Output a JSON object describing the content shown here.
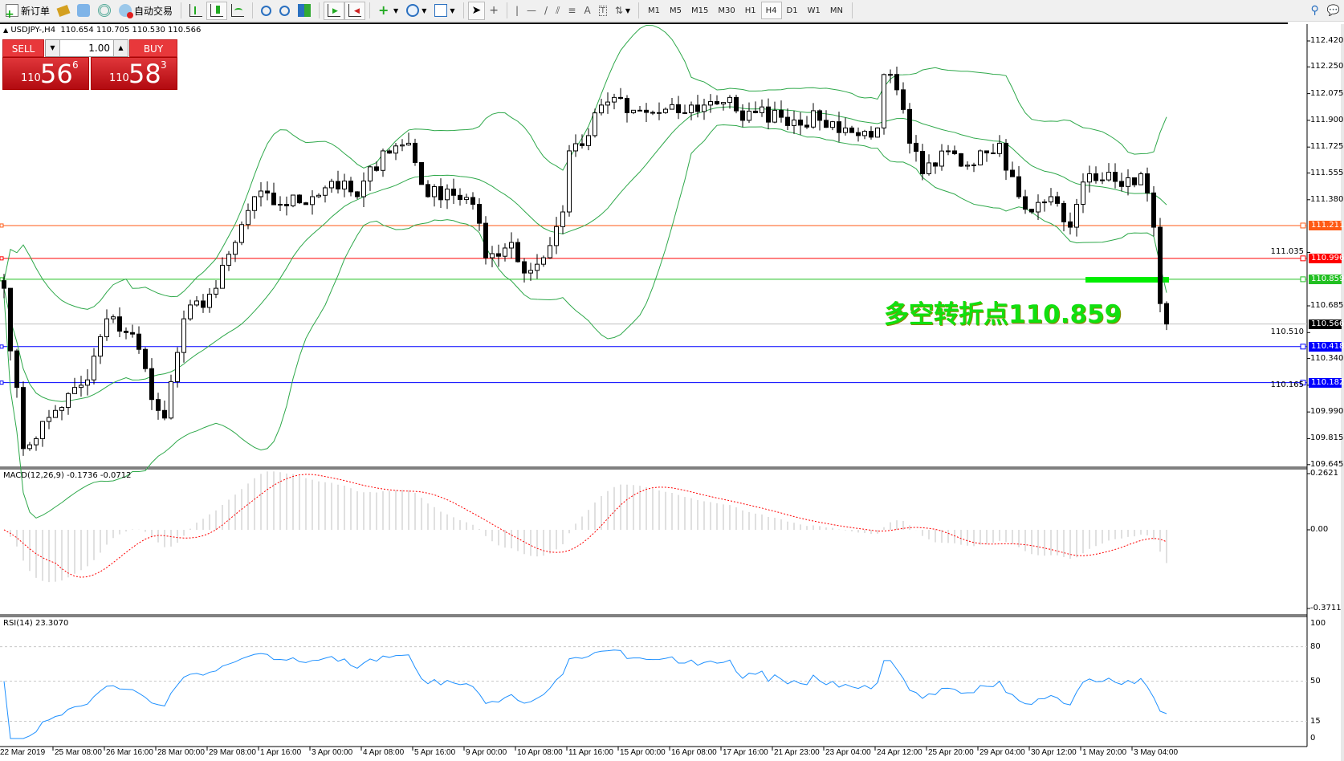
{
  "toolbar": {
    "new_order": "新订单",
    "auto_trading": "自动交易",
    "timeframes": [
      "M1",
      "M5",
      "M15",
      "M30",
      "H1",
      "H4",
      "D1",
      "W1",
      "MN"
    ],
    "active_timeframe": "H4"
  },
  "chart_header": {
    "symbol": "USDJPY-,H4",
    "ohlc": "110.654 110.705 110.530 110.566"
  },
  "trade_panel": {
    "sell": "SELL",
    "buy": "BUY",
    "lot": "1.00",
    "bid": {
      "big": "110",
      "mid": "56",
      "sup": "6"
    },
    "ask": {
      "big": "110",
      "mid": "58",
      "sup": "3"
    }
  },
  "price_axis": [
    "112.420",
    "112.250",
    "112.075",
    "111.900",
    "111.725",
    "111.555",
    "111.380",
    "111.035",
    "110.685",
    "110.510",
    "110.340",
    "110.165",
    "109.990",
    "109.815",
    "109.645"
  ],
  "levels": [
    {
      "price": "111.211",
      "color": "#ff5a14"
    },
    {
      "price": "110.996",
      "color": "#ff0000"
    },
    {
      "price": "110.859",
      "color": "#22c022"
    },
    {
      "price": "110.566",
      "color": "#000000",
      "line": "#c0c0c0"
    },
    {
      "price": "110.418",
      "color": "#0000ff"
    },
    {
      "price": "110.182",
      "color": "#0000ff"
    }
  ],
  "annotation": "多空转折点110.859",
  "macd": {
    "label": "MACD(12,26,9) -0.1736 -0.0712",
    "axis": [
      "0.2621",
      "0.00",
      "-0.3711"
    ]
  },
  "rsi": {
    "label": "RSI(14) 23.3070",
    "axis": [
      "100",
      "80",
      "50",
      "15",
      "0"
    ]
  },
  "time_axis": [
    "22 Mar 2019",
    "25 Mar 08:00",
    "26 Mar 16:00",
    "28 Mar 00:00",
    "29 Mar 08:00",
    "1 Apr 16:00",
    "3 Apr 00:00",
    "4 Apr 08:00",
    "5 Apr 16:00",
    "9 Apr 00:00",
    "10 Apr 08:00",
    "11 Apr 16:00",
    "15 Apr 00:00",
    "16 Apr 08:00",
    "17 Apr 16:00",
    "21 Apr 23:00",
    "23 Apr 04:00",
    "24 Apr 12:00",
    "25 Apr 20:00",
    "29 Apr 04:00",
    "30 Apr 12:00",
    "1 May 20:00",
    "3 May 04:00"
  ],
  "chart_data": {
    "type": "candlestick",
    "symbol": "USDJPY",
    "timeframe": "H4",
    "ylim": [
      109.645,
      112.42
    ],
    "indicators": [
      "Bollinger Bands",
      "MACD(12,26,9)",
      "RSI(14)"
    ],
    "close_waypoints": [
      [
        0,
        110.8
      ],
      [
        3,
        109.75
      ],
      [
        8,
        110.0
      ],
      [
        13,
        110.2
      ],
      [
        16,
        110.6
      ],
      [
        20,
        110.5
      ],
      [
        24,
        110.0
      ],
      [
        25,
        109.95
      ],
      [
        28,
        110.6
      ],
      [
        33,
        110.8
      ],
      [
        36,
        111.1
      ],
      [
        39,
        111.4
      ],
      [
        43,
        111.35
      ],
      [
        48,
        111.4
      ],
      [
        51,
        111.5
      ],
      [
        55,
        111.4
      ],
      [
        59,
        111.7
      ],
      [
        63,
        111.75
      ],
      [
        66,
        111.4
      ],
      [
        69,
        111.45
      ],
      [
        73,
        111.35
      ],
      [
        75,
        111.0
      ],
      [
        79,
        111.1
      ],
      [
        81,
        110.9
      ],
      [
        84,
        111.0
      ],
      [
        87,
        111.3
      ],
      [
        88,
        111.7
      ],
      [
        91,
        111.8
      ],
      [
        93,
        112.0
      ],
      [
        95,
        112.05
      ],
      [
        97,
        111.95
      ],
      [
        101,
        111.95
      ],
      [
        105,
        111.95
      ],
      [
        109,
        112.0
      ],
      [
        113,
        112.05
      ],
      [
        115,
        111.9
      ],
      [
        117,
        111.95
      ],
      [
        121,
        111.92
      ],
      [
        127,
        111.9
      ],
      [
        131,
        111.85
      ],
      [
        133,
        111.8
      ],
      [
        136,
        111.85
      ],
      [
        137,
        112.2
      ],
      [
        139,
        112.1
      ],
      [
        141,
        111.75
      ],
      [
        143,
        111.55
      ],
      [
        145,
        111.6
      ],
      [
        147,
        111.7
      ],
      [
        149,
        111.6
      ],
      [
        152,
        111.7
      ],
      [
        155,
        111.75
      ],
      [
        158,
        111.4
      ],
      [
        160,
        111.3
      ],
      [
        163,
        111.4
      ],
      [
        166,
        111.2
      ],
      [
        167,
        111.35
      ],
      [
        169,
        111.55
      ],
      [
        173,
        111.5
      ],
      [
        177,
        111.55
      ],
      [
        179,
        111.2
      ],
      [
        180,
        110.7
      ],
      [
        181,
        110.566
      ]
    ]
  }
}
